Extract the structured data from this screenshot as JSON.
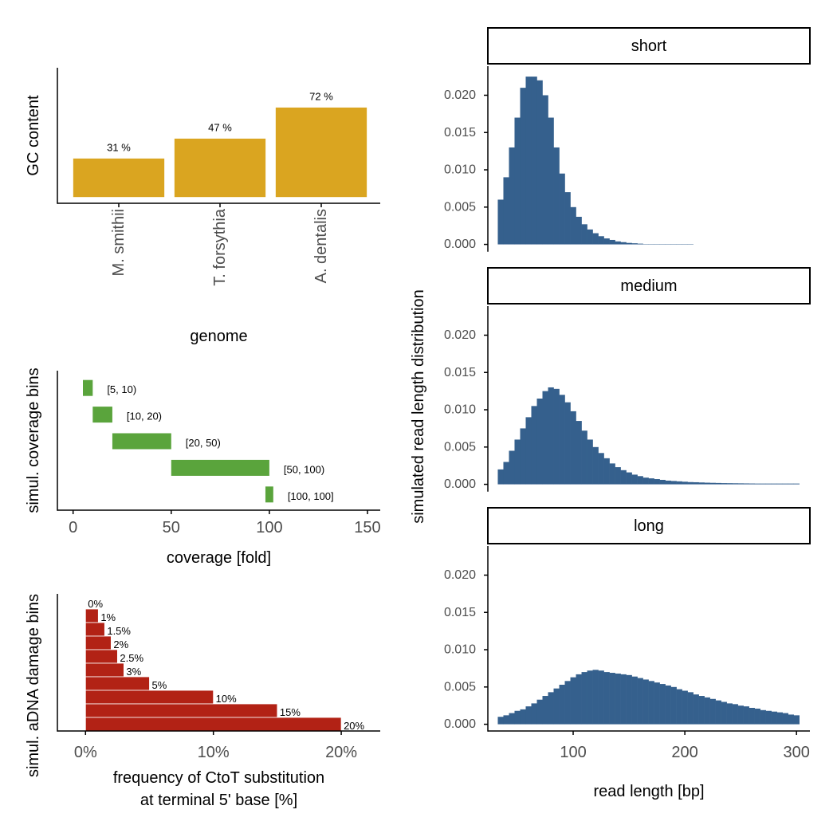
{
  "chart_data": [
    {
      "type": "bar",
      "categories": [
        "M. smithii",
        "T. forsythia",
        "A. dentalis"
      ],
      "values": [
        31,
        47,
        72
      ],
      "value_labels": [
        "31 %",
        "47 %",
        "72 %"
      ],
      "color": "#daa520",
      "ylim": [
        -5,
        104
      ],
      "xlabel": "genome",
      "ylabel": "GC content"
    },
    {
      "type": "range",
      "categories": [
        "[5, 10)",
        "[10, 20)",
        "[20, 50)",
        "[50, 100)",
        "[100, 100]"
      ],
      "start": [
        5,
        10,
        20,
        50,
        98
      ],
      "end": [
        10,
        20,
        50,
        100,
        102
      ],
      "color": "#5aa43c",
      "xlim": [
        -8,
        156.5
      ],
      "xticks": [
        0,
        50,
        100,
        150
      ],
      "xlabel": "coverage [fold]",
      "ylabel": "simul. coverage bins"
    },
    {
      "type": "barh",
      "values": [
        0,
        1,
        1.5,
        2,
        2.5,
        3,
        5,
        10,
        15,
        20
      ],
      "value_labels": [
        "0%",
        "1%",
        "1.5%",
        "2%",
        "2.5%",
        "3%",
        "5%",
        "10%",
        "15%",
        "20%"
      ],
      "color": "#b22215",
      "xlim": [
        -2.2,
        23.05
      ],
      "xticks": [
        {
          "value": 0,
          "label": "0%"
        },
        {
          "value": 10,
          "label": "10%"
        },
        {
          "value": 20,
          "label": "20%"
        }
      ],
      "xlabel": [
        "frequency of CtoT substitution",
        "at terminal 5' base [%]"
      ],
      "ylabel": "simul. aDNA damage bins"
    },
    {
      "type": "histogram",
      "color": "#35608d",
      "bins": [
        32.5,
        37.5,
        42.5,
        47.5,
        52.5,
        57.5,
        62.5,
        67.5,
        72.5,
        77.5,
        82.5,
        87.5,
        92.5,
        97.5,
        102.5,
        107.5,
        112.5,
        117.5,
        122.5,
        127.5,
        132.5,
        137.5,
        142.5,
        147.5,
        152.5,
        157.5,
        162.5,
        167.5,
        172.5,
        177.5,
        182.5,
        187.5,
        192.5,
        197.5,
        202.5,
        207.5,
        212.5,
        217.5,
        222.5,
        227.5,
        232.5,
        237.5,
        242.5,
        247.5,
        252.5,
        257.5,
        262.5,
        267.5,
        272.5,
        277.5,
        282.5,
        287.5,
        292.5,
        297.5,
        302.5
      ],
      "series": [
        {
          "name": "short",
          "values": [
            0.006,
            0.009,
            0.013,
            0.017,
            0.021,
            0.0225,
            0.0225,
            0.022,
            0.02,
            0.017,
            0.013,
            0.0095,
            0.007,
            0.005,
            0.0037,
            0.0027,
            0.002,
            0.0015,
            0.0011,
            0.0008,
            0.0006,
            0.0004,
            0.0003,
            0.0002,
            0.00015,
            0.0001,
            5e-05,
            5e-05,
            5e-05,
            5e-05,
            5e-05,
            5e-05,
            5e-05,
            5e-05,
            5e-05,
            0,
            0,
            0,
            0,
            0,
            0,
            0,
            0,
            0,
            0,
            0,
            0,
            0,
            0,
            0,
            0,
            0,
            0,
            0
          ]
        },
        {
          "name": "medium",
          "values": [
            0.002,
            0.003,
            0.0045,
            0.006,
            0.0075,
            0.009,
            0.0105,
            0.0115,
            0.0125,
            0.013,
            0.0128,
            0.012,
            0.011,
            0.0098,
            0.0085,
            0.0072,
            0.006,
            0.005,
            0.0042,
            0.0035,
            0.0028,
            0.0023,
            0.0019,
            0.0016,
            0.0013,
            0.0011,
            0.0009,
            0.0008,
            0.0007,
            0.0006,
            0.0005,
            0.00045,
            0.0004,
            0.00035,
            0.0003,
            0.00028,
            0.00025,
            0.00022,
            0.0002,
            0.00018,
            0.00016,
            0.00015,
            0.00014,
            0.00013,
            0.00012,
            0.00011,
            0.0001,
            0.0001,
            0.0001,
            0.0001,
            0.0001,
            0.0001,
            0.0001,
            0.0001
          ]
        },
        {
          "name": "long",
          "values": [
            0.001,
            0.0012,
            0.0015,
            0.0018,
            0.002,
            0.0024,
            0.0028,
            0.0033,
            0.0038,
            0.0043,
            0.0048,
            0.0053,
            0.0058,
            0.0063,
            0.0067,
            0.007,
            0.0072,
            0.0073,
            0.0072,
            0.007,
            0.0069,
            0.0068,
            0.0067,
            0.0066,
            0.0064,
            0.0062,
            0.006,
            0.0058,
            0.0056,
            0.0054,
            0.0052,
            0.005,
            0.0047,
            0.0045,
            0.0043,
            0.004,
            0.0038,
            0.0036,
            0.0034,
            0.0032,
            0.003,
            0.0028,
            0.0027,
            0.0025,
            0.0024,
            0.0022,
            0.0021,
            0.0019,
            0.0018,
            0.0017,
            0.0016,
            0.0015,
            0.0013,
            0.0012
          ]
        }
      ],
      "xlim": [
        23.6,
        312
      ],
      "xticks": [
        100,
        200,
        300
      ],
      "ylim": [
        -0.0009,
        0.0239
      ],
      "yticks": [
        {
          "value": 0,
          "label": "0.000"
        },
        {
          "value": 0.005,
          "label": "0.005"
        },
        {
          "value": 0.01,
          "label": "0.010"
        },
        {
          "value": 0.015,
          "label": "0.015"
        },
        {
          "value": 0.02,
          "label": "0.020"
        }
      ],
      "xlabel": "read length [bp]",
      "ylabel": "simulated read length distribution"
    }
  ]
}
